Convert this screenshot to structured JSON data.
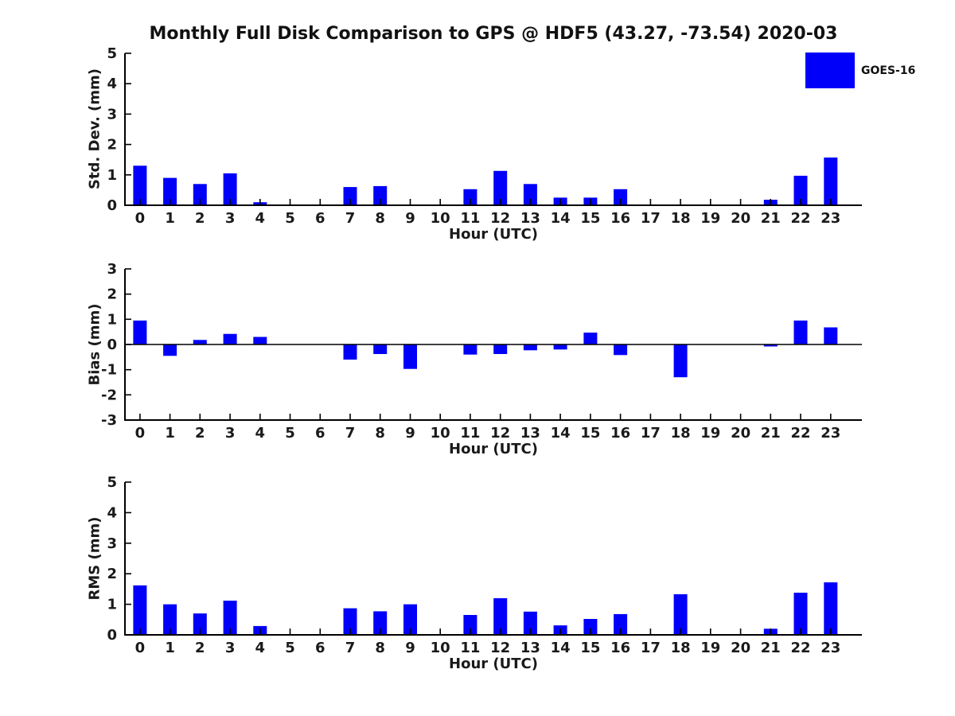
{
  "title": "Monthly Full Disk Comparison to GPS @ HDF5 (43.27, -73.54) 2020-03",
  "legend": {
    "label": "GOES-16",
    "swatch_color": "#0000FA"
  },
  "colors": {
    "bar": "#0000FA",
    "axis": "#000000",
    "text": "#1a1a1a",
    "background": "#ffffff"
  },
  "chart_data": [
    {
      "type": "bar",
      "series_name": "GOES-16",
      "ylabel": "Std. Dev. (mm)",
      "xlabel": "Hour (UTC)",
      "categories": [
        0,
        1,
        2,
        3,
        4,
        5,
        6,
        7,
        8,
        9,
        10,
        11,
        12,
        13,
        14,
        15,
        16,
        17,
        18,
        19,
        20,
        21,
        22,
        23
      ],
      "values": [
        1.3,
        0.9,
        0.7,
        1.05,
        0.1,
        0,
        0,
        0.6,
        0.63,
        0,
        0,
        0.53,
        1.13,
        0.7,
        0.25,
        0.25,
        0.53,
        0,
        0,
        0,
        0,
        0.18,
        0.97,
        1.57
      ],
      "ylim": [
        0,
        5
      ],
      "yticks": [
        0,
        1,
        2,
        3,
        4,
        5
      ],
      "grid": false,
      "legend_position": "upper-right-outside"
    },
    {
      "type": "bar",
      "series_name": "GOES-16",
      "ylabel": "Bias (mm)",
      "xlabel": "Hour (UTC)",
      "categories": [
        0,
        1,
        2,
        3,
        4,
        5,
        6,
        7,
        8,
        9,
        10,
        11,
        12,
        13,
        14,
        15,
        16,
        17,
        18,
        19,
        20,
        21,
        22,
        23
      ],
      "values": [
        0.95,
        -0.45,
        0.18,
        0.42,
        0.3,
        0,
        0,
        -0.6,
        -0.38,
        -0.97,
        0,
        -0.4,
        -0.38,
        -0.23,
        -0.2,
        0.47,
        -0.42,
        0,
        -1.3,
        0,
        0,
        -0.08,
        0.95,
        0.68
      ],
      "ylim": [
        -3,
        3
      ],
      "yticks": [
        -3,
        -2,
        -1,
        0,
        1,
        2,
        3
      ],
      "grid": false,
      "zero_line": true
    },
    {
      "type": "bar",
      "series_name": "GOES-16",
      "ylabel": "RMS (mm)",
      "xlabel": "Hour (UTC)",
      "categories": [
        0,
        1,
        2,
        3,
        4,
        5,
        6,
        7,
        8,
        9,
        10,
        11,
        12,
        13,
        14,
        15,
        16,
        17,
        18,
        19,
        20,
        21,
        22,
        23
      ],
      "values": [
        1.62,
        1.0,
        0.7,
        1.12,
        0.29,
        0,
        0,
        0.87,
        0.77,
        1.0,
        0,
        0.65,
        1.2,
        0.76,
        0.31,
        0.52,
        0.68,
        0,
        1.33,
        0,
        0,
        0.2,
        1.38,
        1.72
      ],
      "ylim": [
        0,
        5
      ],
      "yticks": [
        0,
        1,
        2,
        3,
        4,
        5
      ],
      "grid": false
    }
  ]
}
